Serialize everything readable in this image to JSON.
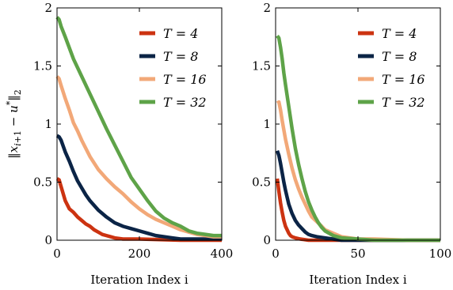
{
  "chart_data": [
    {
      "type": "line",
      "xlabel": "Iteration Index i",
      "ylabel": "||x_{i+1} − u*||_2",
      "xlim": [
        0,
        400
      ],
      "ylim": [
        0,
        2
      ],
      "xticks": [
        "0",
        "200",
        "400"
      ],
      "yticks": [
        "0",
        "0.5",
        "1",
        "1.5",
        "2"
      ],
      "legend_position": "top-right",
      "grid": false,
      "series": [
        {
          "name": "T = 4",
          "color": "#cc3311",
          "x": [
            0,
            5,
            10,
            20,
            30,
            40,
            50,
            60,
            70,
            80,
            90,
            100,
            110,
            120,
            130,
            140,
            160,
            200,
            250,
            300,
            400
          ],
          "y": [
            0.53,
            0.52,
            0.46,
            0.34,
            0.27,
            0.24,
            0.2,
            0.17,
            0.14,
            0.12,
            0.09,
            0.07,
            0.05,
            0.04,
            0.03,
            0.02,
            0.01,
            0.01,
            0.005,
            0.0,
            0.0
          ]
        },
        {
          "name": "T = 8",
          "color": "#0b2446",
          "x": [
            0,
            5,
            10,
            20,
            30,
            40,
            50,
            60,
            70,
            80,
            90,
            100,
            120,
            140,
            160,
            180,
            200,
            220,
            240,
            260,
            280,
            300,
            350,
            400
          ],
          "y": [
            0.9,
            0.89,
            0.86,
            0.76,
            0.68,
            0.59,
            0.51,
            0.45,
            0.39,
            0.34,
            0.3,
            0.26,
            0.2,
            0.15,
            0.12,
            0.1,
            0.08,
            0.06,
            0.04,
            0.03,
            0.02,
            0.01,
            0.01,
            0.01
          ]
        },
        {
          "name": "T = 16",
          "color": "#f2a878",
          "x": [
            0,
            5,
            10,
            20,
            30,
            40,
            50,
            60,
            80,
            100,
            120,
            140,
            160,
            180,
            200,
            220,
            240,
            260,
            280,
            300,
            320,
            340,
            360,
            380,
            400
          ],
          "y": [
            1.41,
            1.39,
            1.33,
            1.22,
            1.12,
            1.01,
            0.94,
            0.86,
            0.72,
            0.61,
            0.53,
            0.46,
            0.4,
            0.33,
            0.27,
            0.22,
            0.18,
            0.15,
            0.12,
            0.09,
            0.07,
            0.05,
            0.04,
            0.03,
            0.03
          ]
        },
        {
          "name": "T = 32",
          "color": "#5ea348",
          "x": [
            0,
            5,
            10,
            20,
            40,
            60,
            80,
            100,
            120,
            140,
            160,
            180,
            200,
            220,
            240,
            260,
            280,
            300,
            320,
            340,
            360,
            380,
            400
          ],
          "y": [
            1.92,
            1.9,
            1.84,
            1.75,
            1.56,
            1.41,
            1.26,
            1.11,
            0.96,
            0.82,
            0.68,
            0.54,
            0.44,
            0.34,
            0.25,
            0.19,
            0.15,
            0.12,
            0.08,
            0.06,
            0.05,
            0.04,
            0.04
          ]
        }
      ]
    },
    {
      "type": "line",
      "xlabel": "Iteration Index i",
      "ylabel": "",
      "xlim": [
        0,
        100
      ],
      "ylim": [
        0,
        2
      ],
      "xticks": [
        "0",
        "50",
        "100"
      ],
      "yticks": [
        "0",
        "0.5",
        "1",
        "1.5",
        "2"
      ],
      "legend_position": "top-right",
      "grid": false,
      "series": [
        {
          "name": "T = 4",
          "color": "#cc3311",
          "x": [
            1,
            2,
            3,
            4,
            5,
            6,
            7,
            8,
            9,
            10,
            12,
            15,
            20,
            30,
            50,
            100
          ],
          "y": [
            0.53,
            0.42,
            0.32,
            0.24,
            0.17,
            0.12,
            0.09,
            0.06,
            0.04,
            0.03,
            0.02,
            0.01,
            0.0,
            0.0,
            0.0,
            0.0
          ]
        },
        {
          "name": "T = 8",
          "color": "#0b2446",
          "x": [
            1,
            2,
            3,
            4,
            5,
            6,
            7,
            8,
            10,
            12,
            14,
            16,
            18,
            20,
            22,
            25,
            30,
            40,
            50,
            100
          ],
          "y": [
            0.77,
            0.73,
            0.66,
            0.58,
            0.5,
            0.43,
            0.37,
            0.31,
            0.23,
            0.17,
            0.13,
            0.1,
            0.07,
            0.05,
            0.04,
            0.03,
            0.02,
            0.0,
            0.0,
            0.0
          ]
        },
        {
          "name": "T = 16",
          "color": "#f2a878",
          "x": [
            1,
            2,
            3,
            4,
            5,
            6,
            8,
            10,
            12,
            14,
            16,
            18,
            20,
            22,
            25,
            28,
            30,
            35,
            40,
            45,
            50,
            60,
            80,
            100
          ],
          "y": [
            1.18,
            1.19,
            1.12,
            1.03,
            0.95,
            0.87,
            0.74,
            0.62,
            0.52,
            0.44,
            0.37,
            0.31,
            0.25,
            0.2,
            0.16,
            0.12,
            0.09,
            0.06,
            0.03,
            0.02,
            0.01,
            0.01,
            0.0,
            0.0
          ]
        },
        {
          "name": "T = 32",
          "color": "#5ea348",
          "x": [
            1,
            2,
            3,
            4,
            5,
            6,
            8,
            10,
            12,
            14,
            16,
            18,
            20,
            22,
            24,
            26,
            28,
            30,
            35,
            40,
            50,
            60,
            80,
            100
          ],
          "y": [
            1.76,
            1.74,
            1.66,
            1.56,
            1.44,
            1.34,
            1.15,
            0.96,
            0.79,
            0.65,
            0.53,
            0.42,
            0.33,
            0.26,
            0.2,
            0.15,
            0.11,
            0.08,
            0.04,
            0.02,
            0.01,
            0.0,
            0.0,
            0.0
          ]
        }
      ]
    }
  ]
}
